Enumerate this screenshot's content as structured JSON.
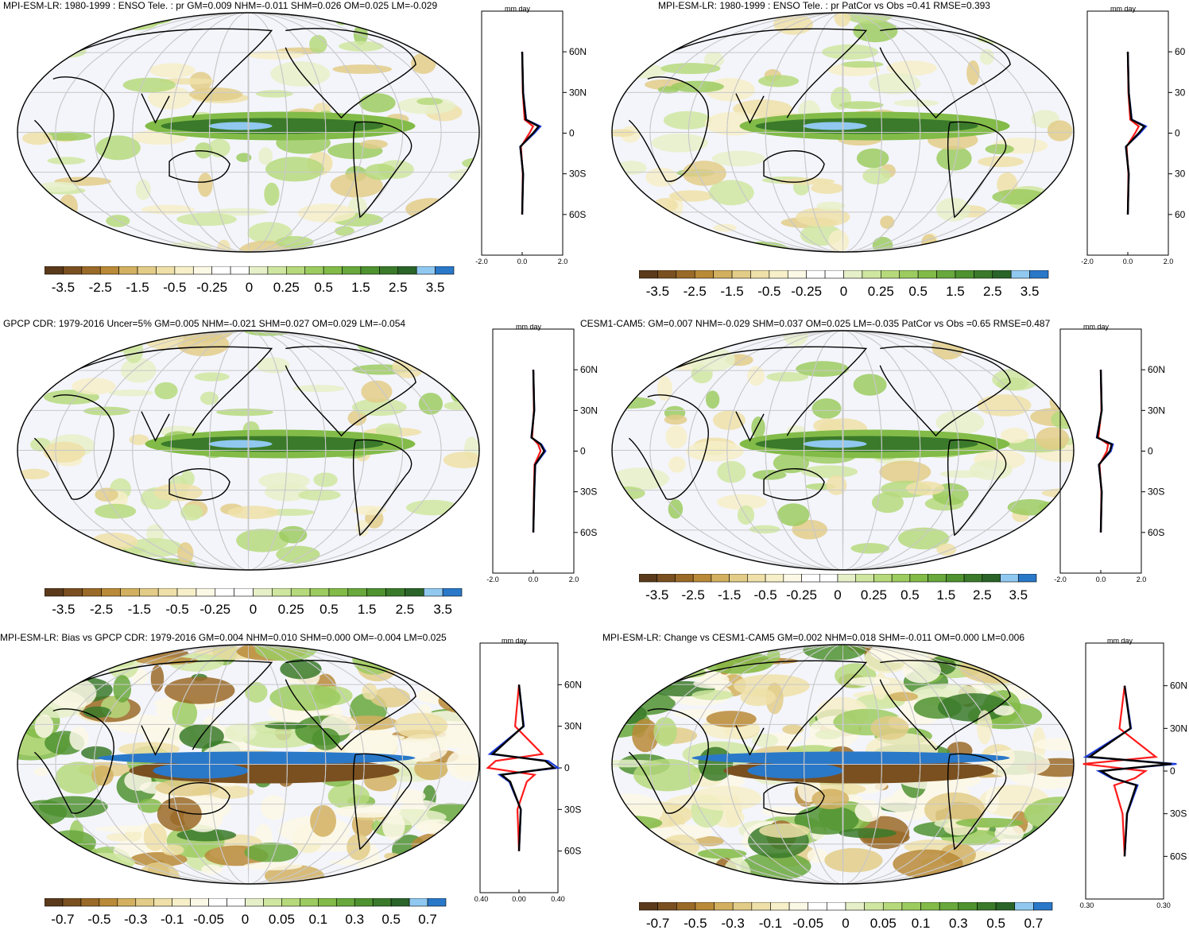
{
  "panels": [
    {
      "title": "MPI-ESM-LR: 1980-1999 : ENSO Tele. : pr GM=0.009 NHM=-0.011 SHM=0.026 OM=0.025 LM=-0.029",
      "units": "mm day",
      "units_exp": "-1",
      "lat_ticks": [
        "60N",
        "30N",
        "0",
        "30S",
        "60S"
      ],
      "x_ticks": [
        "-2.0",
        "0.0",
        "2.0"
      ],
      "cb_labels": [
        "-3.5",
        "-2.5",
        "-1.5",
        "-0.5",
        "-0.25",
        "0",
        "0.25",
        "0.5",
        "1.5",
        "2.5",
        "3.5"
      ]
    },
    {
      "title": "MPI-ESM-LR: 1980-1999 : ENSO Tele. : pr PatCor vs Obs =0.41 RMSE=0.393",
      "units": "mm day",
      "units_exp": "-1",
      "lat_ticks": [
        "60",
        "30",
        "0",
        "30",
        "60"
      ],
      "x_ticks": [
        "-2.0",
        "0.0",
        "2.0"
      ],
      "cb_labels": [
        "-3.5",
        "-2.5",
        "-1.5",
        "-0.5",
        "-0.25",
        "0",
        "0.25",
        "0.5",
        "1.5",
        "2.5",
        "3.5"
      ]
    },
    {
      "title": "GPCP CDR: 1979-2016 Uncer=5% GM=0.005 NHM=-0.021 SHM=0.027 OM=0.029 LM=-0.054",
      "units": "mm day",
      "units_exp": "-1",
      "lat_ticks": [
        "60N",
        "30N",
        "0",
        "30S",
        "60S"
      ],
      "x_ticks": [
        "-2.0",
        "0.0",
        "2.0"
      ],
      "cb_labels": [
        "-3.5",
        "-2.5",
        "-1.5",
        "-0.5",
        "-0.25",
        "0",
        "0.25",
        "0.5",
        "1.5",
        "2.5",
        "3.5"
      ]
    },
    {
      "title": "CESM1-CAM5: GM=0.007 NHM=-0.029 SHM=0.037 OM=0.025 LM=-0.035 PatCor vs Obs =0.65 RMSE=0.487",
      "units": "mm day",
      "units_exp": "-1",
      "lat_ticks": [
        "60N",
        "30N",
        "0",
        "30S",
        "60S"
      ],
      "x_ticks": [
        "-2.0",
        "0.0",
        "2.0"
      ],
      "cb_labels": [
        "-3.5",
        "-2.5",
        "-1.5",
        "-0.5",
        "-0.25",
        "0",
        "0.25",
        "0.5",
        "1.5",
        "2.5",
        "3.5"
      ]
    },
    {
      "title": "MPI-ESM-LR: Bias vs GPCP CDR: 1979-2016 GM=0.004 NHM=0.010 SHM=0.000 OM=-0.004 LM=0.025",
      "units": "mm day",
      "units_exp": "-1",
      "lat_ticks": [
        "60N",
        "30N",
        "0",
        "30S",
        "60S"
      ],
      "x_ticks": [
        "-0.40",
        "0.00",
        "0.40"
      ],
      "cb_labels": [
        "-0.7",
        "-0.5",
        "-0.3",
        "-0.1",
        "-0.05",
        "0",
        "0.05",
        "0.1",
        "0.3",
        "0.5",
        "0.7"
      ]
    },
    {
      "title": "MPI-ESM-LR: Change vs CESM1-CAM5 GM=0.002 NHM=0.018 SHM=-0.011 OM=0.000 LM=0.006",
      "units": "mm day",
      "units_exp": "-1",
      "lat_ticks": [
        "60N",
        "30N",
        "0",
        "30S",
        "60S"
      ],
      "x_ticks": [
        "-0.30",
        "0.30"
      ],
      "cb_labels": [
        "-0.7",
        "-0.5",
        "-0.3",
        "-0.1",
        "-0.05",
        "0",
        "0.05",
        "0.1",
        "0.3",
        "0.5",
        "0.7"
      ]
    }
  ],
  "colors": {
    "palette": [
      "#5a3a1a",
      "#7a5020",
      "#9a6a28",
      "#b98a38",
      "#d2b060",
      "#e2cc88",
      "#eee0a8",
      "#f6efc8",
      "#fbf8e6",
      "#ffffff",
      "#f2f4fa",
      "#e6f0c8",
      "#cfe6a0",
      "#b6d97c",
      "#9ccb60",
      "#82bb48",
      "#68a83c",
      "#4f9230",
      "#3a7a2a",
      "#2a6428",
      "#90c8f0",
      "#2a78c8"
    ],
    "obs": "#ff1a1a",
    "model": "#1a3ad8",
    "mean": "#000000"
  },
  "chart_data": [
    {
      "type": "heatmap",
      "title": "MPI-ESM-LR: 1980-1999 : ENSO Tele. : pr GM=0.009 NHM=-0.011 SHM=0.026 OM=0.025 LM=-0.029",
      "colorbar_levels": [
        -3.5,
        -2.5,
        -1.5,
        -0.5,
        -0.25,
        0,
        0.25,
        0.5,
        1.5,
        2.5,
        3.5
      ],
      "zonal_mean": {
        "xlim": [
          -2.0,
          2.0
        ],
        "ylim": [
          -90,
          90
        ],
        "lat": [
          -60,
          -30,
          -10,
          0,
          5,
          10,
          30,
          60
        ],
        "values": [
          0.0,
          0.05,
          -0.1,
          0.6,
          0.9,
          0.2,
          0.05,
          0.0
        ]
      }
    },
    {
      "type": "heatmap",
      "title": "MPI-ESM-LR: 1980-1999 : ENSO Tele. : pr PatCor vs Obs =0.41 RMSE=0.393",
      "colorbar_levels": [
        -3.5,
        -2.5,
        -1.5,
        -0.5,
        -0.25,
        0,
        0.25,
        0.5,
        1.5,
        2.5,
        3.5
      ],
      "zonal_mean": {
        "xlim": [
          -2.0,
          2.0
        ],
        "ylim": [
          -90,
          90
        ],
        "lat": [
          -60,
          -30,
          -10,
          0,
          5,
          10,
          30,
          60
        ],
        "values": [
          0.0,
          0.05,
          -0.1,
          0.6,
          0.9,
          0.2,
          0.05,
          0.0
        ]
      }
    },
    {
      "type": "heatmap",
      "title": "GPCP CDR: 1979-2016 Uncer=5% GM=0.005 NHM=-0.021 SHM=0.027 OM=0.029 LM=-0.054",
      "colorbar_levels": [
        -3.5,
        -2.5,
        -1.5,
        -0.5,
        -0.25,
        0,
        0.25,
        0.5,
        1.5,
        2.5,
        3.5
      ],
      "zonal_mean": {
        "xlim": [
          -2.0,
          2.0
        ],
        "ylim": [
          -90,
          90
        ],
        "lat": [
          -60,
          -30,
          -10,
          0,
          5,
          10,
          30,
          60
        ],
        "values": [
          0.0,
          0.05,
          0.1,
          0.6,
          0.4,
          -0.1,
          0.05,
          0.0
        ]
      }
    },
    {
      "type": "heatmap",
      "title": "CESM1-CAM5: GM=0.007 NHM=-0.029 SHM=0.037 OM=0.025 LM=-0.035 PatCor vs Obs =0.65 RMSE=0.487",
      "colorbar_levels": [
        -3.5,
        -2.5,
        -1.5,
        -0.5,
        -0.25,
        0,
        0.25,
        0.5,
        1.5,
        2.5,
        3.5
      ],
      "zonal_mean": {
        "xlim": [
          -2.0,
          2.0
        ],
        "ylim": [
          -90,
          90
        ],
        "lat": [
          -60,
          -30,
          -10,
          0,
          5,
          10,
          30,
          60
        ],
        "values": [
          0.0,
          0.05,
          -0.1,
          0.5,
          0.6,
          -0.2,
          0.05,
          0.0
        ]
      }
    },
    {
      "type": "heatmap",
      "title": "MPI-ESM-LR: Bias vs GPCP CDR: 1979-2016 GM=0.004 NHM=0.010 SHM=0.000 OM=-0.004 LM=0.025",
      "colorbar_levels": [
        -0.7,
        -0.5,
        -0.3,
        -0.1,
        -0.05,
        0,
        0.05,
        0.1,
        0.3,
        0.5,
        0.7
      ],
      "zonal_mean": {
        "xlim": [
          -0.4,
          0.4
        ],
        "ylim": [
          -90,
          90
        ],
        "lat": [
          -60,
          -30,
          -10,
          -5,
          0,
          5,
          10,
          30,
          60
        ],
        "values": [
          0.0,
          0.02,
          -0.1,
          -0.2,
          0.4,
          0.3,
          -0.3,
          0.05,
          0.0
        ]
      }
    },
    {
      "type": "heatmap",
      "title": "MPI-ESM-LR: Change vs CESM1-CAM5 GM=0.002 NHM=0.018 SHM=-0.011 OM=0.000 LM=0.006",
      "colorbar_levels": [
        -0.7,
        -0.5,
        -0.3,
        -0.1,
        -0.05,
        0,
        0.05,
        0.1,
        0.3,
        0.5,
        0.7
      ],
      "zonal_mean": {
        "xlim": [
          -0.3,
          0.3
        ],
        "ylim": [
          -90,
          90
        ],
        "lat": [
          -60,
          -30,
          -10,
          -5,
          0,
          5,
          10,
          30,
          60
        ],
        "values": [
          0.0,
          0.02,
          0.1,
          -0.1,
          -0.2,
          0.4,
          -0.3,
          0.05,
          0.0
        ]
      }
    }
  ]
}
